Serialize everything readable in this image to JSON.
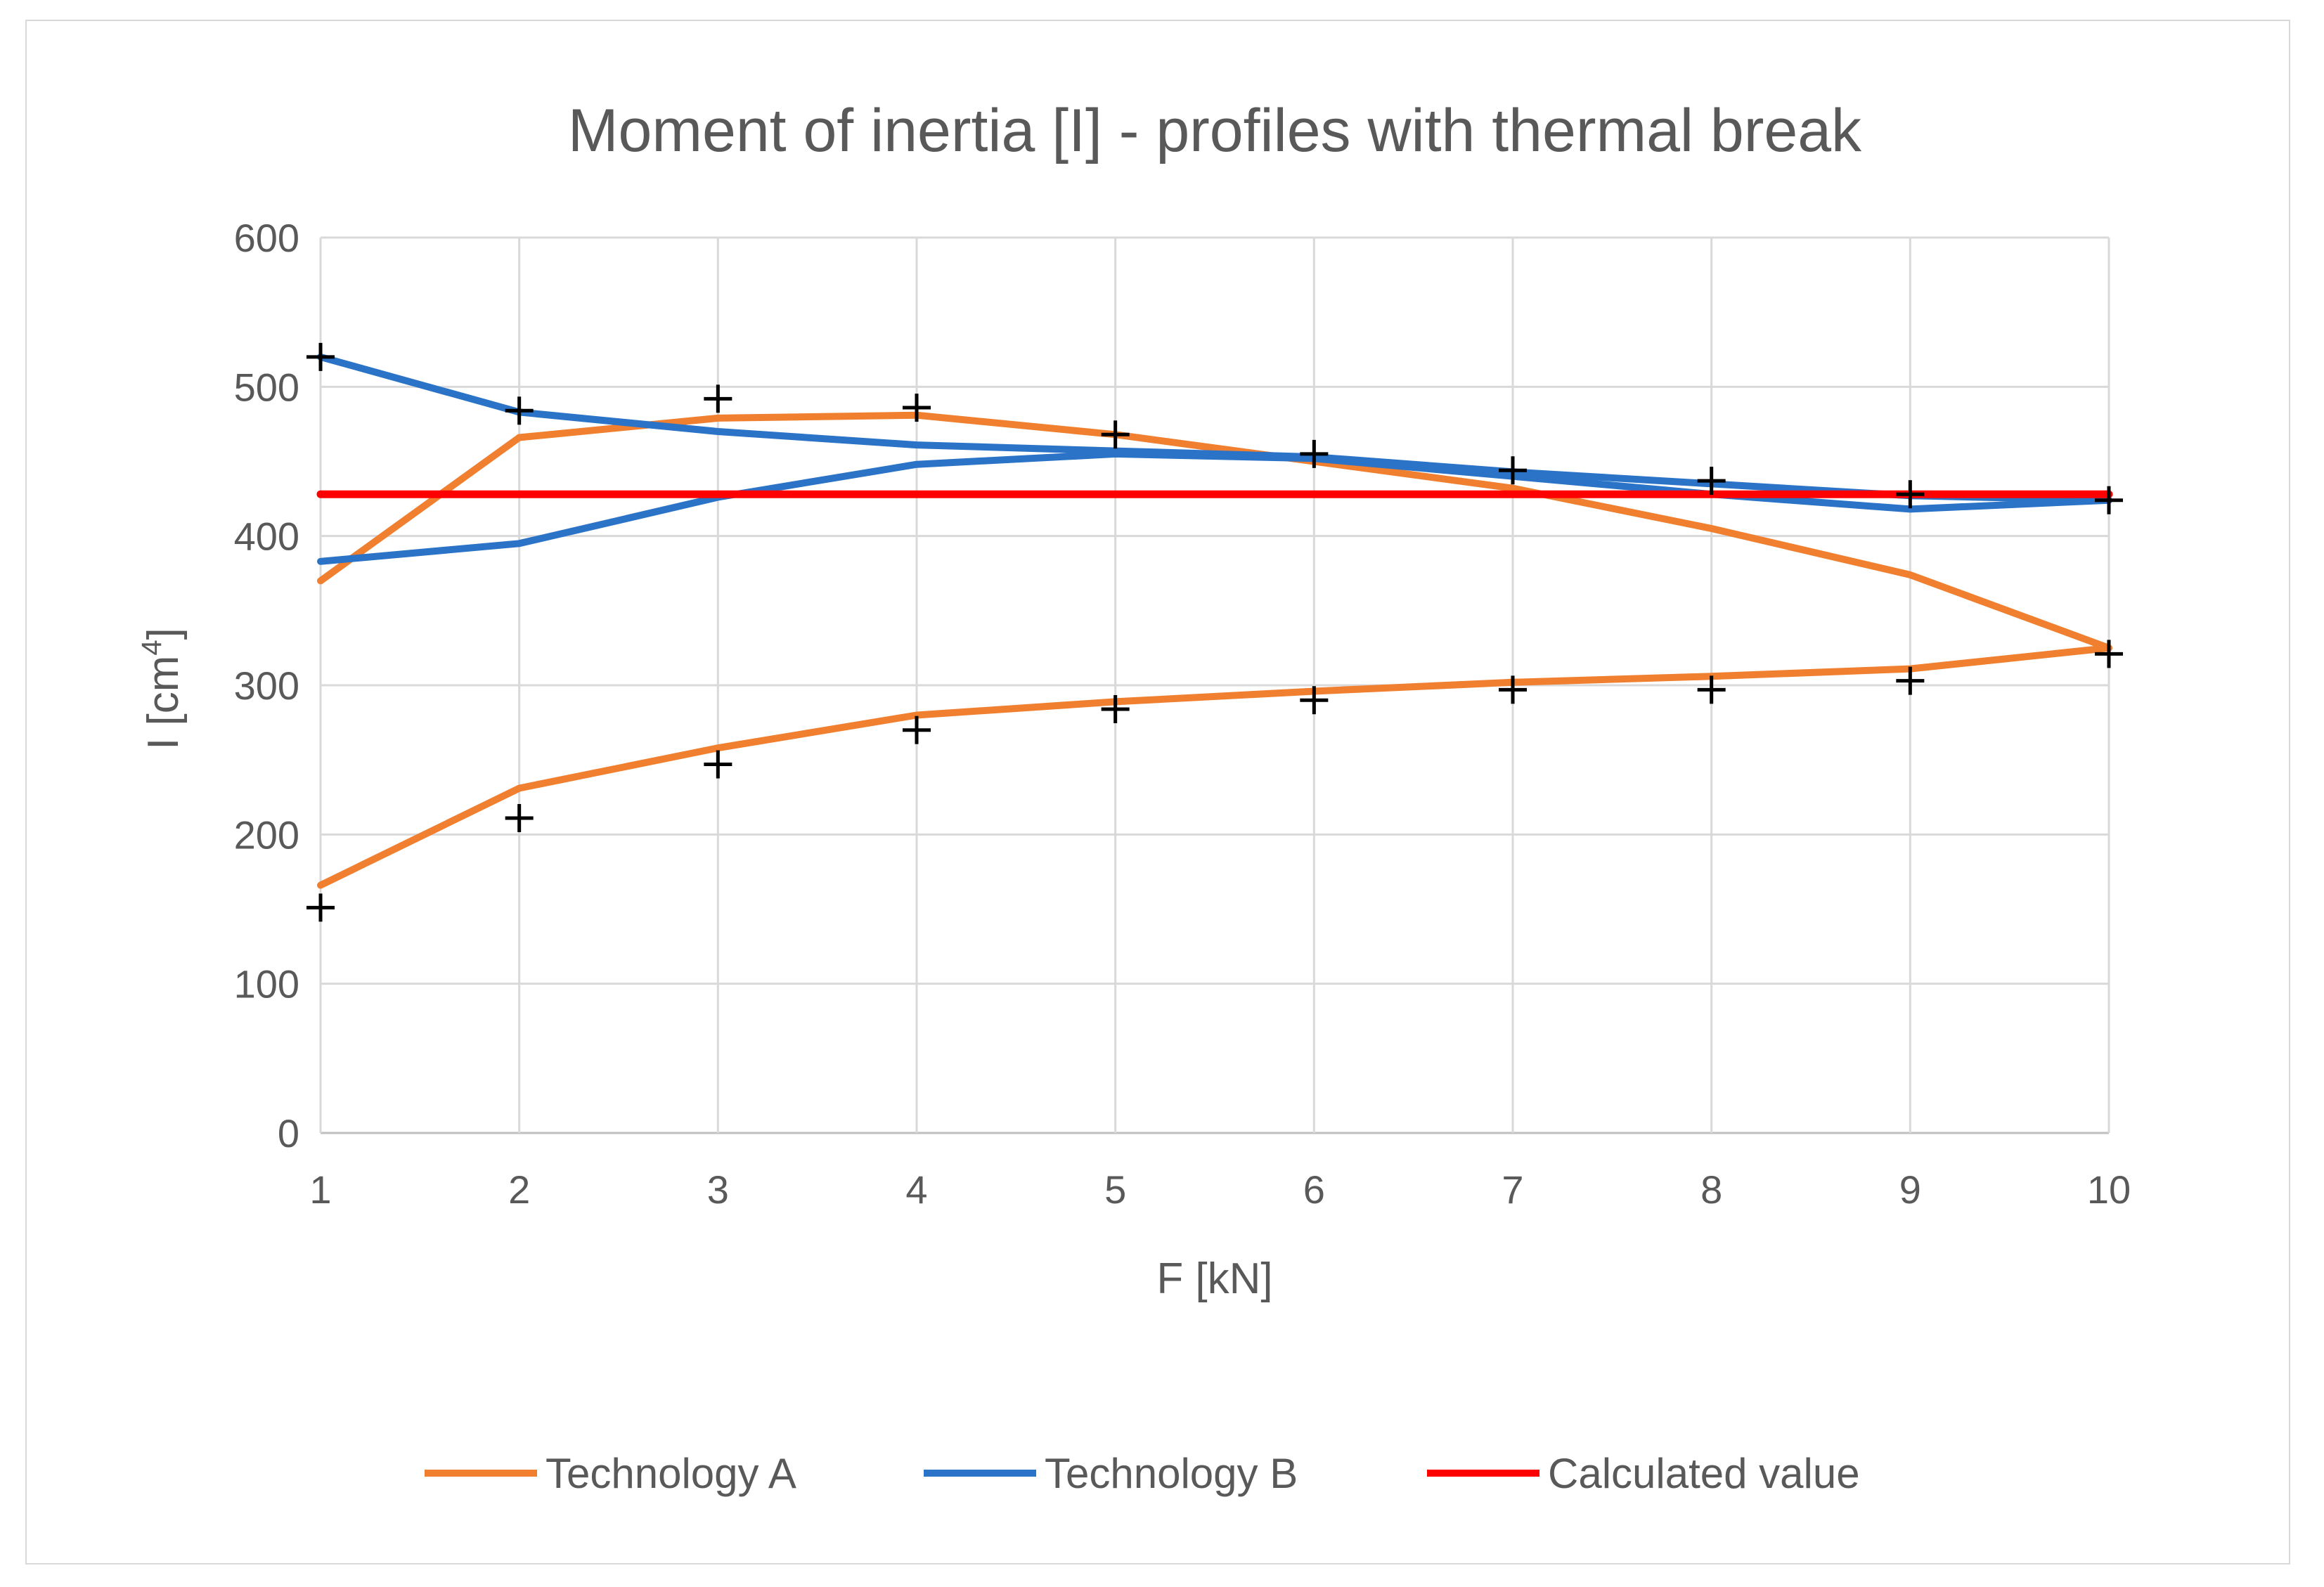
{
  "chart_data": {
    "type": "line",
    "title": "Moment of inertia [I] - profiles with thermal break",
    "xlabel": "F [kN]",
    "ylabel_base": "I [cm",
    "ylabel_sup": "4",
    "ylabel_close": "]",
    "categories": [
      1,
      2,
      3,
      4,
      5,
      6,
      7,
      8,
      9,
      10
    ],
    "ylim": [
      0,
      600
    ],
    "yticks": [
      0,
      100,
      200,
      300,
      400,
      500,
      600
    ],
    "grid": true,
    "legend_position": "bottom",
    "series": [
      {
        "name": "Technology A",
        "color": "#f07f2f",
        "legend": true,
        "values": [
          370,
          466,
          479,
          481,
          468,
          450,
          432,
          405,
          374,
          325
        ]
      },
      {
        "name": "Technology A (lower)",
        "color": "#f07f2f",
        "legend": false,
        "values": [
          166,
          231,
          258,
          280,
          289,
          296,
          302,
          306,
          311,
          325
        ]
      },
      {
        "name": "Technology B",
        "color": "#2a73c7",
        "legend": true,
        "values": [
          520,
          483,
          470,
          461,
          457,
          453,
          443,
          435,
          427,
          424
        ]
      },
      {
        "name": "Technology B (lower)",
        "color": "#2a73c7",
        "legend": false,
        "values": [
          383,
          395,
          426,
          448,
          455,
          452,
          440,
          428,
          418,
          424
        ]
      },
      {
        "name": "Calculated value",
        "color": "#ff0000",
        "legend": true,
        "values": [
          428,
          428,
          428,
          428,
          428,
          428,
          428,
          428,
          428,
          428
        ]
      }
    ],
    "markers": {
      "symbol": "+",
      "color": "#000000",
      "upper": [
        520,
        484,
        492,
        486,
        468,
        455,
        444,
        437,
        428,
        424
      ],
      "lower": [
        151,
        211,
        247,
        270,
        284,
        290,
        297,
        297,
        303,
        321
      ]
    }
  }
}
